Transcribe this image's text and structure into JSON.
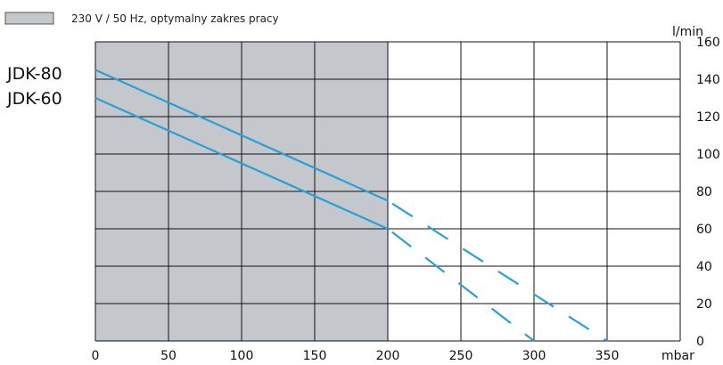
{
  "chart_data": {
    "type": "line",
    "title": "",
    "xlabel": "mbar",
    "ylabel": "l/min",
    "xlim": [
      0,
      400
    ],
    "ylim": [
      0,
      160
    ],
    "x_ticks": [
      0,
      50,
      100,
      150,
      200,
      250,
      300,
      350
    ],
    "y_ticks": [
      0,
      20,
      40,
      60,
      80,
      100,
      120,
      140,
      160
    ],
    "grid": true,
    "shaded_region": {
      "x": [
        0,
        200
      ],
      "label": "230 V / 50 Hz, optymalny zakres pracy",
      "color": "#c4c8cc"
    },
    "series": [
      {
        "name": "JDK-80",
        "color": "#2a9fd6",
        "solid": [
          [
            0,
            145
          ],
          [
            200,
            75
          ]
        ],
        "dashed": [
          [
            200,
            75
          ],
          [
            300,
            25
          ],
          [
            350,
            0
          ]
        ]
      },
      {
        "name": "JDK-60",
        "color": "#2a9fd6",
        "solid": [
          [
            0,
            130
          ],
          [
            200,
            60
          ]
        ],
        "dashed": [
          [
            200,
            60
          ],
          [
            300,
            0
          ]
        ]
      }
    ]
  },
  "legend": {
    "label": "230 V / 50 Hz, optymalny zakres pracy"
  },
  "colors": {
    "grid": "#111111",
    "line": "#2a9fd6",
    "shade": "#c4c8cc"
  }
}
